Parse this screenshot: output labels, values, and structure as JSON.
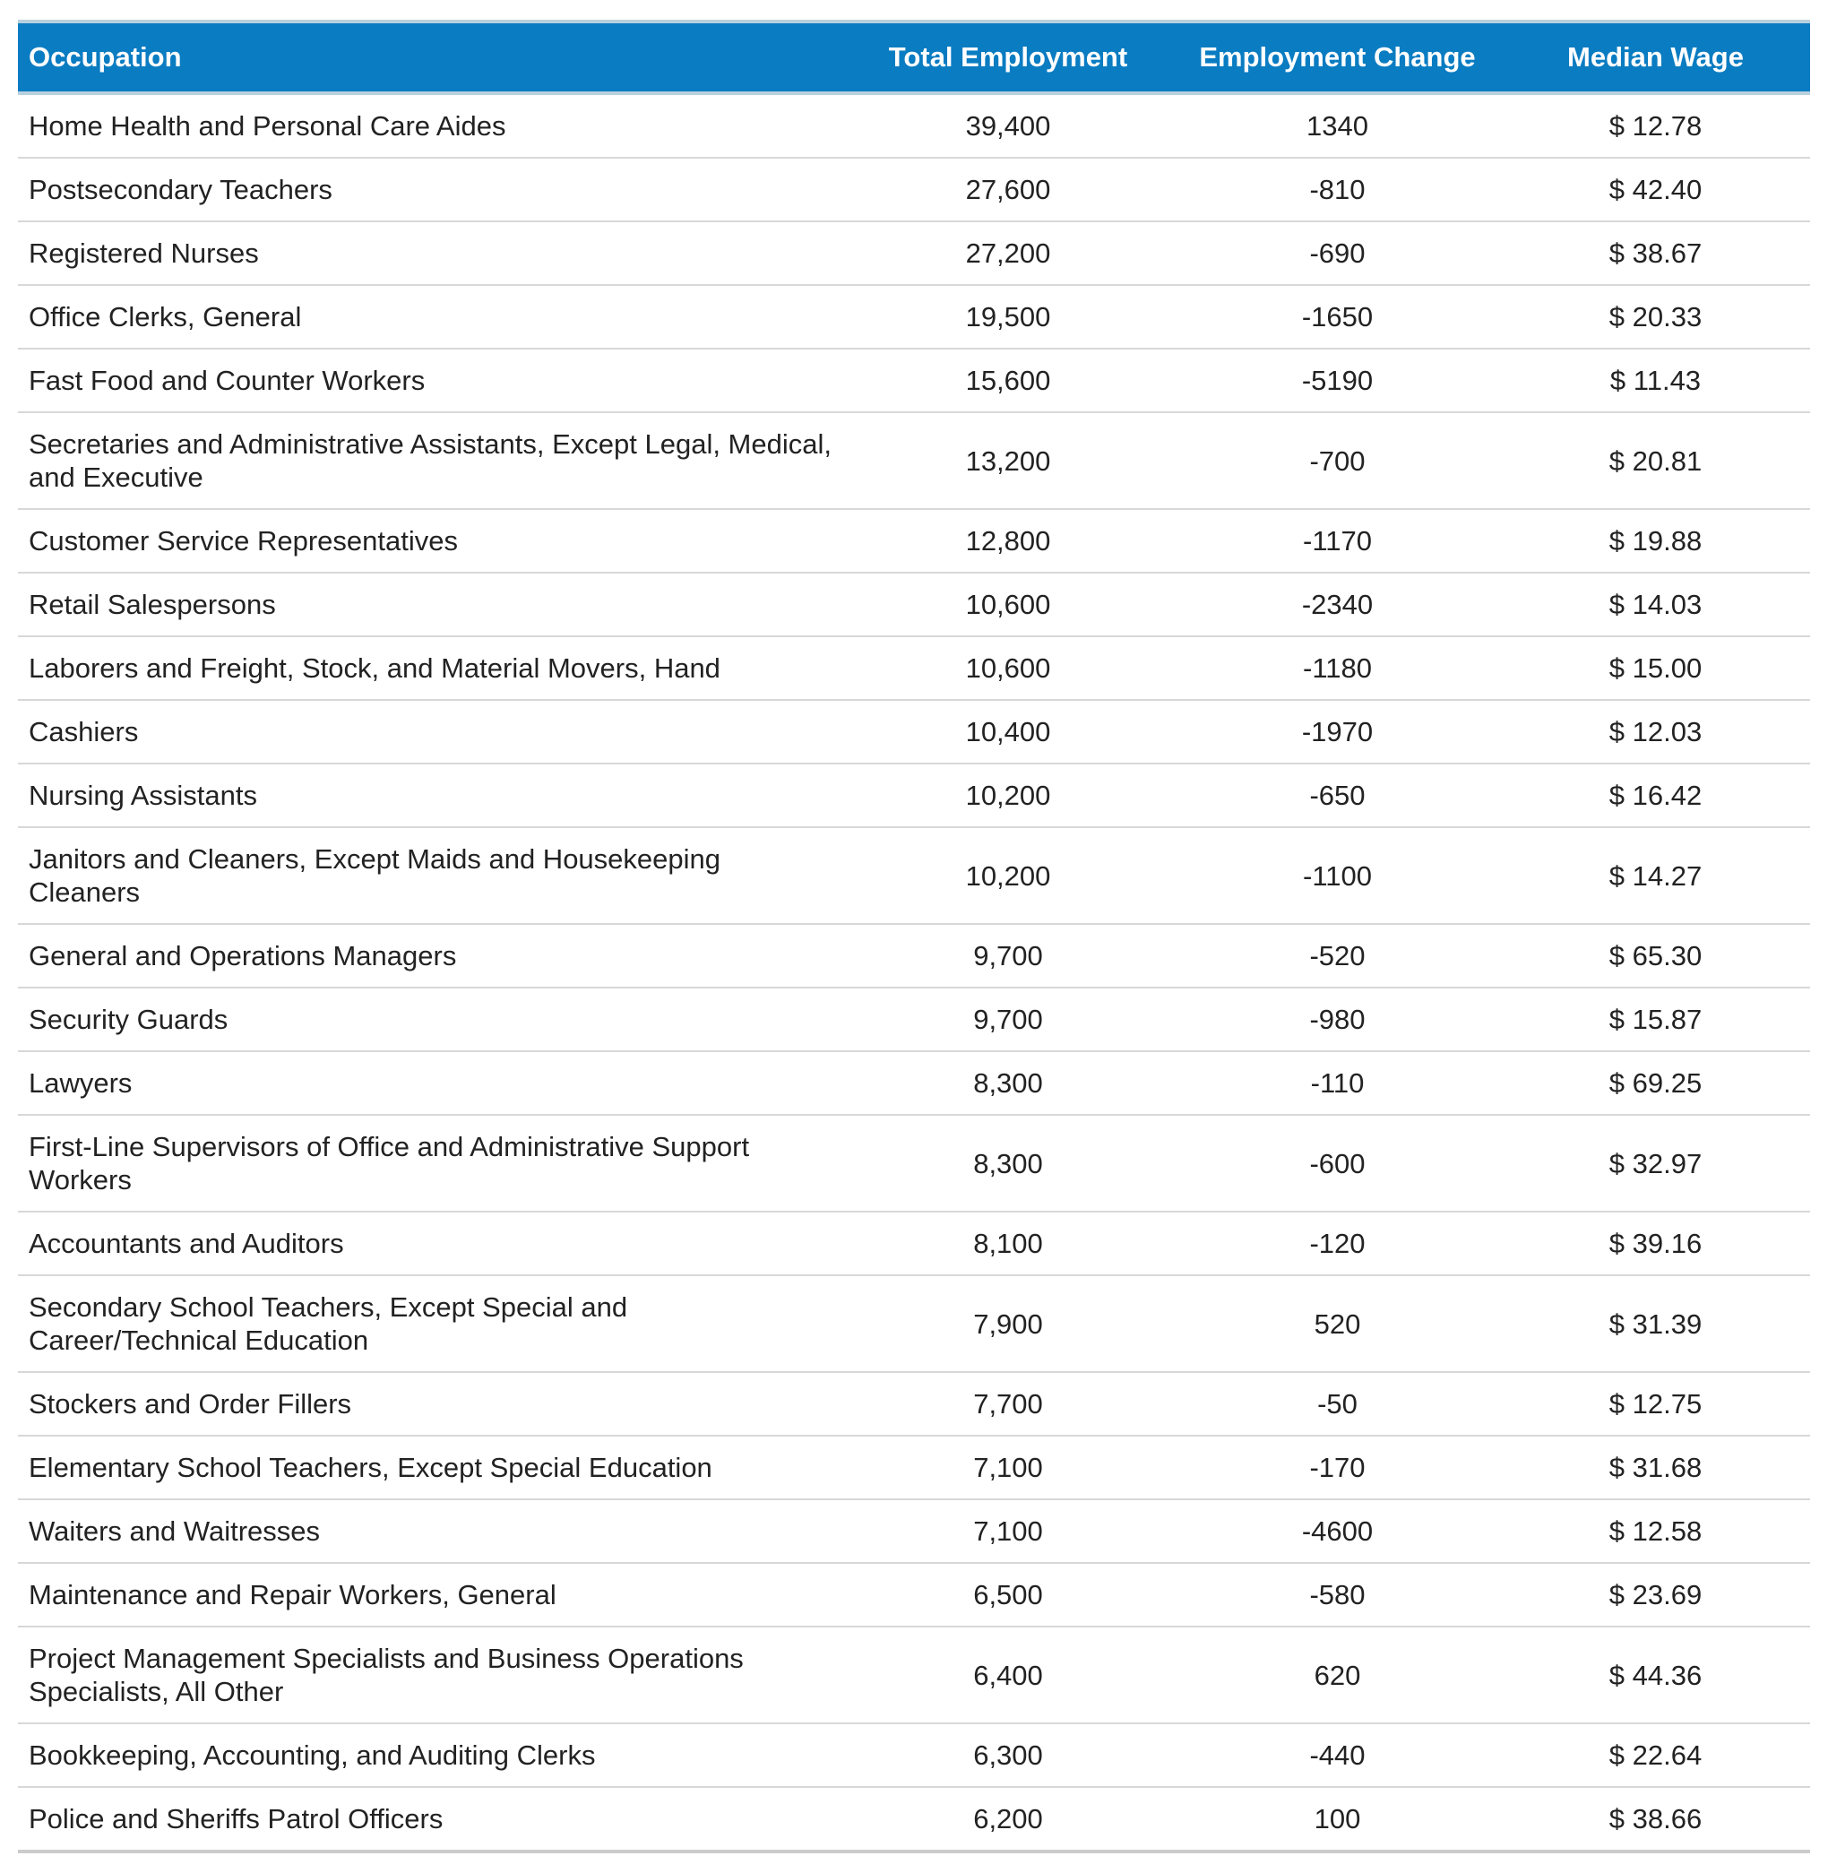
{
  "chart_data": {
    "type": "table",
    "columns": [
      "Occupation",
      "Total Employment",
      "Employment Change",
      "Median Wage"
    ],
    "rows": [
      {
        "occupation": "Home Health and Personal Care Aides",
        "total": "39,400",
        "change": "1340",
        "wage": "$ 12.78"
      },
      {
        "occupation": "Postsecondary Teachers",
        "total": "27,600",
        "change": "-810",
        "wage": "$ 42.40"
      },
      {
        "occupation": "Registered Nurses",
        "total": "27,200",
        "change": "-690",
        "wage": "$ 38.67"
      },
      {
        "occupation": "Office Clerks, General",
        "total": "19,500",
        "change": "-1650",
        "wage": "$ 20.33"
      },
      {
        "occupation": "Fast Food and Counter Workers",
        "total": "15,600",
        "change": "-5190",
        "wage": "$ 11.43"
      },
      {
        "occupation": "Secretaries and Administrative Assistants, Except Legal, Medical, and Executive",
        "total": "13,200",
        "change": "-700",
        "wage": "$ 20.81"
      },
      {
        "occupation": "Customer Service Representatives",
        "total": "12,800",
        "change": "-1170",
        "wage": "$ 19.88"
      },
      {
        "occupation": "Retail Salespersons",
        "total": "10,600",
        "change": "-2340",
        "wage": "$ 14.03"
      },
      {
        "occupation": "Laborers and Freight, Stock, and Material Movers, Hand",
        "total": "10,600",
        "change": "-1180",
        "wage": "$ 15.00"
      },
      {
        "occupation": "Cashiers",
        "total": "10,400",
        "change": "-1970",
        "wage": "$ 12.03"
      },
      {
        "occupation": "Nursing Assistants",
        "total": "10,200",
        "change": "-650",
        "wage": "$ 16.42"
      },
      {
        "occupation": "Janitors and Cleaners, Except Maids and Housekeeping Cleaners",
        "total": "10,200",
        "change": "-1100",
        "wage": "$ 14.27"
      },
      {
        "occupation": "General and Operations Managers",
        "total": "9,700",
        "change": "-520",
        "wage": "$ 65.30"
      },
      {
        "occupation": "Security Guards",
        "total": "9,700",
        "change": "-980",
        "wage": "$ 15.87"
      },
      {
        "occupation": "Lawyers",
        "total": "8,300",
        "change": "-110",
        "wage": "$ 69.25"
      },
      {
        "occupation": "First-Line Supervisors of Office and Administrative Support Workers",
        "total": "8,300",
        "change": "-600",
        "wage": "$ 32.97"
      },
      {
        "occupation": "Accountants and Auditors",
        "total": "8,100",
        "change": "-120",
        "wage": "$ 39.16"
      },
      {
        "occupation": "Secondary School Teachers, Except Special and Career/Technical Education",
        "total": "7,900",
        "change": "520",
        "wage": "$ 31.39"
      },
      {
        "occupation": "Stockers and Order Fillers",
        "total": "7,700",
        "change": "-50",
        "wage": "$ 12.75"
      },
      {
        "occupation": "Elementary School Teachers, Except Special Education",
        "total": "7,100",
        "change": "-170",
        "wage": "$ 31.68"
      },
      {
        "occupation": "Waiters and Waitresses",
        "total": "7,100",
        "change": "-4600",
        "wage": "$ 12.58"
      },
      {
        "occupation": "Maintenance and Repair Workers, General",
        "total": "6,500",
        "change": "-580",
        "wage": "$ 23.69"
      },
      {
        "occupation": "Project Management Specialists and Business Operations Specialists, All Other",
        "total": "6,400",
        "change": "620",
        "wage": "$ 44.36"
      },
      {
        "occupation": "Bookkeeping, Accounting, and Auditing Clerks",
        "total": "6,300",
        "change": "-440",
        "wage": "$ 22.64"
      },
      {
        "occupation": "Police and Sheriffs Patrol Officers",
        "total": "6,200",
        "change": "100",
        "wage": "$ 38.66"
      }
    ]
  },
  "colors": {
    "header_bg": "#0a7cc2",
    "header_text": "#ffffff",
    "row_divider": "#d8d8d8"
  }
}
